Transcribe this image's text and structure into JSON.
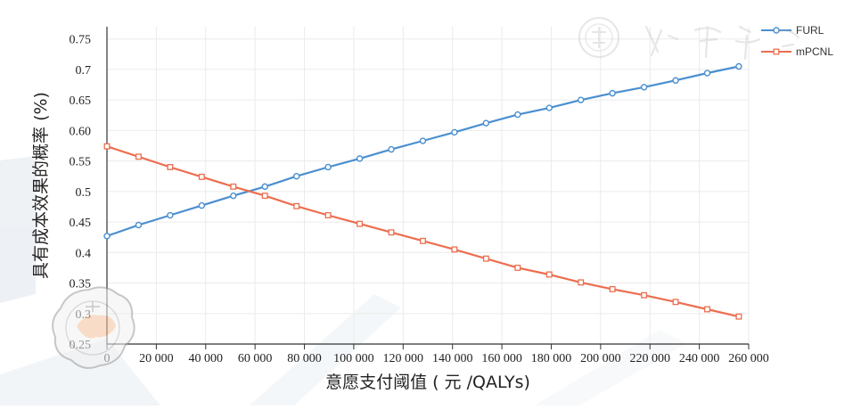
{
  "chart_data": {
    "type": "line",
    "xlabel": "意愿支付阈值 ( 元 /QALYs)",
    "ylabel": "具有成本效果的概率 (%)",
    "xlim": [
      0,
      260000
    ],
    "ylim": [
      0.25,
      0.77
    ],
    "x_ticks": [
      "0",
      "20 000",
      "40 000",
      "60 000",
      "80 000",
      "100 000",
      "120 000",
      "140 000",
      "160 000",
      "180 000",
      "200 000",
      "220 000",
      "240 000",
      "260 000"
    ],
    "y_ticks": [
      "0.25",
      "0.3",
      "0.35",
      "0.4",
      "0.45",
      "0.5",
      "0.55",
      "0.60",
      "0.65",
      "0.7",
      "0.75"
    ],
    "grid": true,
    "legend_position": "top-right",
    "x": [
      0,
      12800,
      25600,
      38400,
      51200,
      64000,
      76800,
      89600,
      102400,
      115200,
      128000,
      140800,
      153600,
      166400,
      179200,
      192000,
      204800,
      217600,
      230400,
      243200,
      256000
    ],
    "series": [
      {
        "name": "FURL",
        "color": "#4a8fd0",
        "marker": "circle",
        "values": [
          0.427,
          0.445,
          0.461,
          0.477,
          0.493,
          0.508,
          0.525,
          0.54,
          0.554,
          0.569,
          0.583,
          0.597,
          0.612,
          0.626,
          0.637,
          0.65,
          0.661,
          0.671,
          0.682,
          0.694,
          0.705
        ]
      },
      {
        "name": "mPCNL",
        "color": "#ec6e4f",
        "marker": "square",
        "values": [
          0.574,
          0.557,
          0.54,
          0.524,
          0.508,
          0.493,
          0.476,
          0.461,
          0.447,
          0.433,
          0.419,
          0.405,
          0.39,
          0.375,
          0.364,
          0.351,
          0.34,
          0.33,
          0.319,
          0.307,
          0.295
        ]
      }
    ]
  },
  "watermark": {
    "text": "中华医学会"
  }
}
